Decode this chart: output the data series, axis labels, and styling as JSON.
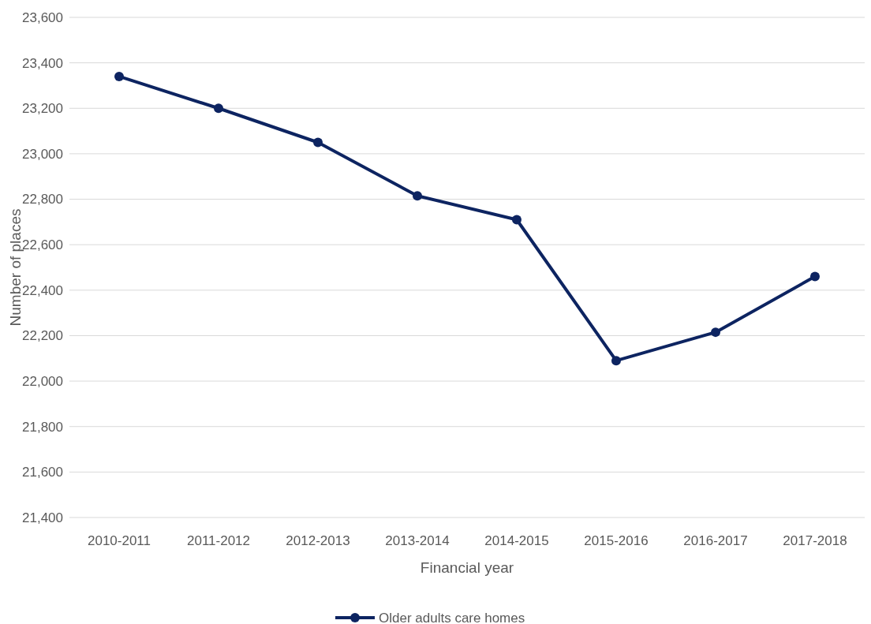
{
  "chart_data": {
    "type": "line",
    "xlabel": "Financial year",
    "ylabel": "Number of places",
    "categories": [
      "2010-2011",
      "2011-2012",
      "2012-2013",
      "2013-2014",
      "2014-2015",
      "2015-2016",
      "2016-2017",
      "2017-2018"
    ],
    "series": [
      {
        "name": "Older adults care homes",
        "color": "#0d2461",
        "values": [
          23340,
          23200,
          23050,
          22815,
          22710,
          22090,
          22215,
          22460
        ]
      }
    ],
    "ylim": [
      21400,
      23600
    ],
    "yticks": [
      {
        "value": 21400,
        "label": "21,400"
      },
      {
        "value": 21600,
        "label": "21,600"
      },
      {
        "value": 21800,
        "label": "21,800"
      },
      {
        "value": 22000,
        "label": "22,000"
      },
      {
        "value": 22200,
        "label": "22,200"
      },
      {
        "value": 22400,
        "label": "22,400"
      },
      {
        "value": 22600,
        "label": "22,600"
      },
      {
        "value": 22800,
        "label": "22,800"
      },
      {
        "value": 23000,
        "label": "23,000"
      },
      {
        "value": 23200,
        "label": "23,200"
      },
      {
        "value": 23400,
        "label": "23,400"
      },
      {
        "value": 23600,
        "label": "23,600"
      }
    ],
    "grid": "y",
    "legend": "bottom",
    "marker": "circle",
    "line_style": "solid"
  }
}
